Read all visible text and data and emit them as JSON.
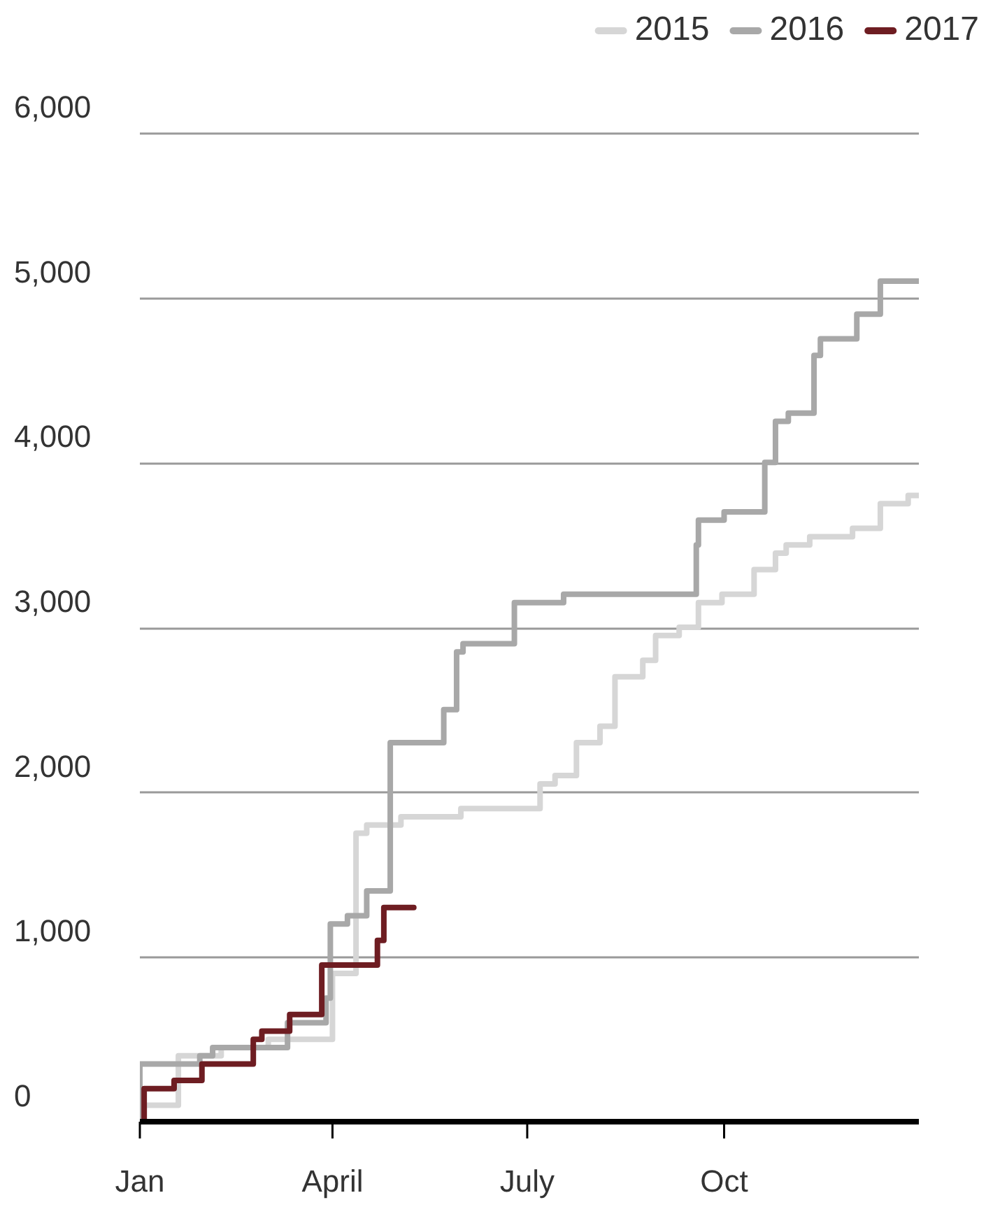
{
  "chart_data": {
    "type": "step",
    "xlim": [
      "--01-01",
      "--12-31"
    ],
    "xticks": [
      {
        "value": "--01-01",
        "label": "Jan"
      },
      {
        "value": "--04-01",
        "label": "April"
      },
      {
        "value": "--07-01",
        "label": "July"
      },
      {
        "value": "--10-01",
        "label": "Oct"
      }
    ],
    "ylim": [
      0,
      6000
    ],
    "yticks": [
      {
        "value": 0,
        "label": "0"
      },
      {
        "value": 1000,
        "label": "1,000"
      },
      {
        "value": 2000,
        "label": "2,000"
      },
      {
        "value": 3000,
        "label": "3,000"
      },
      {
        "value": 4000,
        "label": "4,000"
      },
      {
        "value": 5000,
        "label": "5,000"
      },
      {
        "value": 6000,
        "label": "6,000"
      }
    ],
    "grid": "y",
    "legend": "top right",
    "marker": "none",
    "line_style": "solid",
    "series": [
      {
        "name": "2015",
        "color": "#d6d6d6",
        "x": [
          "--01-03",
          "--01-19",
          "--02-08",
          "--03-02",
          "--04-01",
          "--04-12",
          "--04-17",
          "--05-03",
          "--05-31",
          "--07-07",
          "--07-14",
          "--07-24",
          "--08-04",
          "--08-11",
          "--08-24",
          "--08-30",
          "--09-10",
          "--09-19",
          "--09-30",
          "--10-15",
          "--10-25",
          "--10-30",
          "--11-10",
          "--11-30",
          "--12-13",
          "--12-26",
          "--12-31"
        ],
        "values": [
          0,
          100,
          400,
          450,
          500,
          900,
          1750,
          1800,
          1850,
          1900,
          2050,
          2100,
          2300,
          2400,
          2700,
          2800,
          2950,
          3000,
          3150,
          3200,
          3350,
          3450,
          3500,
          3550,
          3600,
          3750,
          3800
        ]
      },
      {
        "name": "2016",
        "color": "#a8a8a8",
        "x": [
          "--01-01",
          "--01-29",
          "--02-04",
          "--03-11",
          "--03-29",
          "--03-31",
          "--04-08",
          "--04-17",
          "--04-28",
          "--05-23",
          "--05-29",
          "--06-01",
          "--06-25",
          "--07-18",
          "--08-24",
          "--09-18",
          "--09-19",
          "--10-01",
          "--10-20",
          "--10-25",
          "--10-31",
          "--11-12",
          "--11-15",
          "--12-02",
          "--12-13",
          "--12-26",
          "--12-31"
        ],
        "values": [
          0,
          350,
          400,
          450,
          600,
          750,
          1200,
          1250,
          1400,
          2300,
          2500,
          2850,
          2900,
          3150,
          3200,
          3200,
          3500,
          3650,
          3700,
          4000,
          4250,
          4300,
          4650,
          4750,
          4900,
          5100,
          5100
        ]
      },
      {
        "name": "2017",
        "color": "#6e1d22",
        "x": [
          "--01-03",
          "--01-17",
          "--01-30",
          "--02-23",
          "--02-27",
          "--03-12",
          "--03-27",
          "--04-22",
          "--04-25",
          "--05-09"
        ],
        "values": [
          0,
          200,
          250,
          350,
          500,
          550,
          650,
          950,
          1100,
          1300
        ]
      }
    ]
  }
}
